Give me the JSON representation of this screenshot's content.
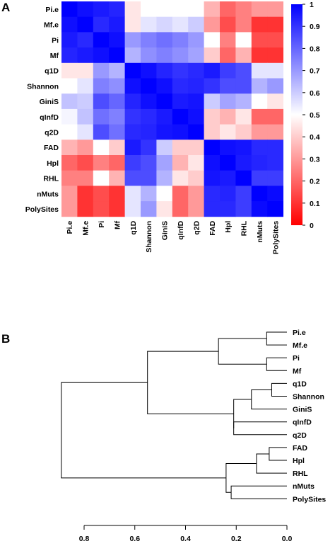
{
  "panels": {
    "a": "A",
    "b": "B"
  },
  "chart_data": [
    {
      "type": "heatmap",
      "rows": [
        "Pi.e",
        "Mf.e",
        "Pi",
        "Mf",
        "q1D",
        "Shannon",
        "GiniS",
        "qInfD",
        "q2D",
        "FAD",
        "Hpl",
        "RHL",
        "nMuts",
        "PolySites"
      ],
      "cols": [
        "Pi.e",
        "Mf.e",
        "Pi",
        "Mf",
        "q1D",
        "Shannon",
        "GiniS",
        "qInfD",
        "q2D",
        "FAD",
        "Hpl",
        "RHL",
        "nMuts",
        "PolySites"
      ],
      "values": [
        [
          1.0,
          0.97,
          0.95,
          0.93,
          0.45,
          0.5,
          0.5,
          0.5,
          0.5,
          0.35,
          0.2,
          0.25,
          0.3,
          0.3
        ],
        [
          0.97,
          1.0,
          0.92,
          0.95,
          0.45,
          0.55,
          0.58,
          0.55,
          0.6,
          0.3,
          0.15,
          0.25,
          0.1,
          0.1
        ],
        [
          0.95,
          0.92,
          1.0,
          0.97,
          0.7,
          0.75,
          0.78,
          0.75,
          0.7,
          0.5,
          0.25,
          0.5,
          0.15,
          0.15
        ],
        [
          0.93,
          0.95,
          0.97,
          1.0,
          0.65,
          0.72,
          0.75,
          0.72,
          0.68,
          0.4,
          0.2,
          0.35,
          0.1,
          0.1
        ],
        [
          0.45,
          0.45,
          0.7,
          0.65,
          1.0,
          0.97,
          0.93,
          0.9,
          0.92,
          0.95,
          0.88,
          0.85,
          0.55,
          0.55
        ],
        [
          0.5,
          0.55,
          0.75,
          0.72,
          0.97,
          1.0,
          0.97,
          0.92,
          0.93,
          0.9,
          0.85,
          0.85,
          0.65,
          0.7
        ],
        [
          0.62,
          0.6,
          0.85,
          0.8,
          0.93,
          0.97,
          1.0,
          0.95,
          0.96,
          0.6,
          0.68,
          0.65,
          0.5,
          0.45
        ],
        [
          0.52,
          0.62,
          0.78,
          0.75,
          0.9,
          0.92,
          0.95,
          1.0,
          0.97,
          0.4,
          0.35,
          0.45,
          0.2,
          0.2
        ],
        [
          0.5,
          0.55,
          0.85,
          0.78,
          0.92,
          0.93,
          0.96,
          0.97,
          1.0,
          0.4,
          0.45,
          0.4,
          0.3,
          0.3
        ],
        [
          0.35,
          0.3,
          0.5,
          0.4,
          0.95,
          0.9,
          0.6,
          0.4,
          0.4,
          1.0,
          0.97,
          0.96,
          0.92,
          0.92
        ],
        [
          0.2,
          0.15,
          0.25,
          0.2,
          0.88,
          0.85,
          0.68,
          0.35,
          0.45,
          0.97,
          1.0,
          0.95,
          0.93,
          0.92
        ],
        [
          0.25,
          0.25,
          0.5,
          0.35,
          0.85,
          0.85,
          0.65,
          0.45,
          0.4,
          0.96,
          0.95,
          1.0,
          0.88,
          0.88
        ],
        [
          0.3,
          0.1,
          0.15,
          0.1,
          0.55,
          0.65,
          0.5,
          0.2,
          0.3,
          0.92,
          0.93,
          0.88,
          1.0,
          0.98
        ],
        [
          0.3,
          0.1,
          0.15,
          0.1,
          0.55,
          0.7,
          0.45,
          0.2,
          0.3,
          0.92,
          0.92,
          0.88,
          0.98,
          1.0
        ]
      ],
      "colorbar": {
        "min": 0,
        "max": 1,
        "ticks": [
          "0",
          "0.1",
          "0.2",
          "0.3",
          "0.4",
          "0.5",
          "0.6",
          "0.7",
          "0.8",
          "0.9",
          "1"
        ],
        "low_color": "#ff0000",
        "mid_color": "#ffffff",
        "high_color": "#0000ff"
      }
    },
    {
      "type": "dendrogram",
      "leaves": [
        "Pi.e",
        "Mf.e",
        "Pi",
        "Mf",
        "q1D",
        "Shannon",
        "GiniS",
        "qInfD",
        "q2D",
        "FAD",
        "Hpl",
        "RHL",
        "nMuts",
        "PolySites"
      ],
      "merges": [
        {
          "a": "L0",
          "b": "L1",
          "height": 0.08
        },
        {
          "a": "L2",
          "b": "L3",
          "height": 0.08
        },
        {
          "a": "M0",
          "b": "M1",
          "height": 0.27
        },
        {
          "a": "L4",
          "b": "L5",
          "height": 0.06
        },
        {
          "a": "M3",
          "b": "L6",
          "height": 0.14
        },
        {
          "a": "L7",
          "b": "L8",
          "height": 0.21
        },
        {
          "a": "M4",
          "b": "M5",
          "height": 0.21
        },
        {
          "a": "M2",
          "b": "M6",
          "height": 0.55
        },
        {
          "a": "L9",
          "b": "L10",
          "height": 0.07
        },
        {
          "a": "M8",
          "b": "L11",
          "height": 0.12
        },
        {
          "a": "L12",
          "b": "L13",
          "height": 0.22
        },
        {
          "a": "M9",
          "b": "M10",
          "height": 0.24
        },
        {
          "a": "M7",
          "b": "M11",
          "height": 0.89
        }
      ],
      "axis": {
        "ticks": [
          0.8,
          0.6,
          0.4,
          0.2,
          0.0
        ],
        "tick_labels": [
          "0.8",
          "0.6",
          "0.4",
          "0.2",
          "0.0"
        ],
        "reversed": true
      }
    }
  ]
}
